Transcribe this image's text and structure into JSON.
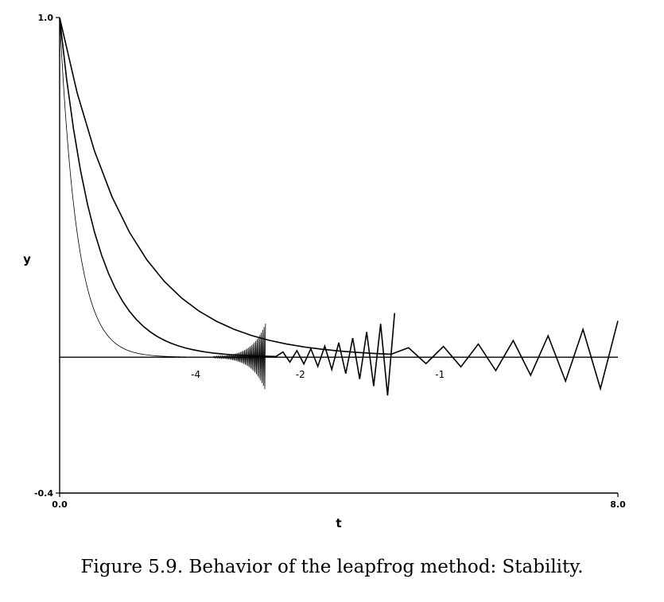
{
  "caption": "Figure 5.9. Behavior of the leapfrog method: Stability.",
  "chart_data": {
    "type": "line",
    "title": "",
    "xlabel": "t",
    "ylabel": "y",
    "xlim": [
      0.0,
      8.0
    ],
    "ylim": [
      -0.4,
      1.0
    ],
    "x_tick_labels": [
      "0.0",
      "8.0"
    ],
    "y_tick_labels": [
      "1.0",
      "-0.4"
    ],
    "baseline_y": 0.0,
    "grid": false,
    "legend": "none",
    "series": [
      {
        "name": "-4",
        "label_position": {
          "x": 1.95,
          "y": -0.06
        },
        "decay_rate": 4,
        "h": 0.01,
        "t_end": 2.95,
        "smooth_until": 2.2,
        "osc_growth": 5.2,
        "osc_amp_start": 0.002
      },
      {
        "name": "-2",
        "label_position": {
          "x": 3.45,
          "y": -0.06
        },
        "decay_rate": 2,
        "h": 0.1,
        "t_end": 4.85,
        "smooth_until": 3.1,
        "osc_growth": 1.4,
        "osc_amp_start": 0.012
      },
      {
        "name": "-1",
        "label_position": {
          "x": 5.45,
          "y": -0.06
        },
        "decay_rate": 1,
        "h": 0.25,
        "t_end": 8.0,
        "smooth_until": 4.9,
        "osc_growth": 0.54,
        "osc_amp_start": 0.02
      }
    ]
  }
}
